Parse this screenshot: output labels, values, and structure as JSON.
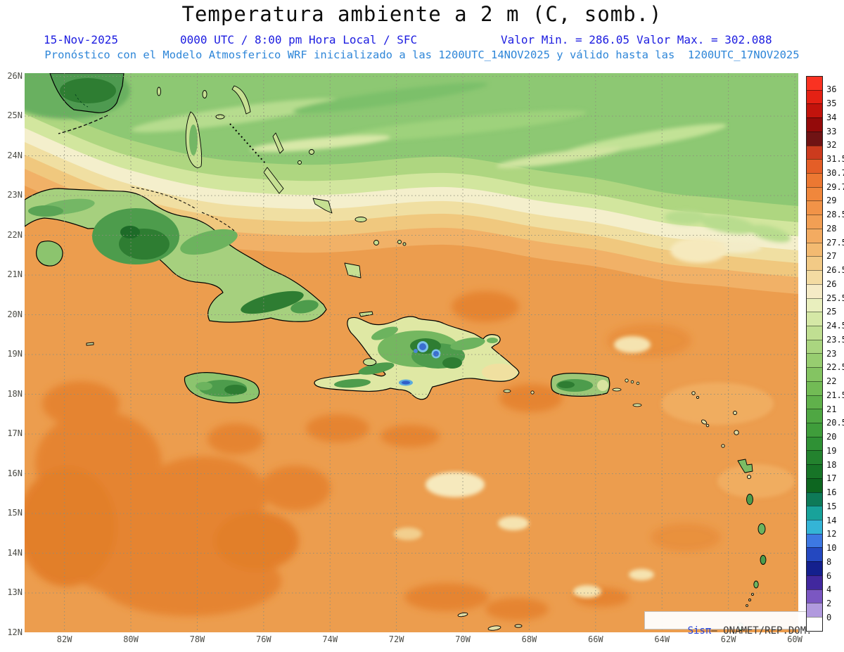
{
  "header": {
    "title": "Temperatura ambiente a 2 m (C, somb.)",
    "date": "15-Nov-2025",
    "time_info": "0000 UTC / 8:00 pm Hora Local / SFC",
    "min_label": "Valor Min. = 286.05",
    "max_label": "Valor Max. = 302.088",
    "model_info": "Pronóstico con el Modelo Atmosferico WRF inicializado a las 1200UTC_14NOV2025 y válido hasta las  1200UTC_17NOV2025"
  },
  "map": {
    "lat_labels": [
      "26N",
      "25N",
      "24N",
      "23N",
      "22N",
      "21N",
      "20N",
      "19N",
      "18N",
      "17N",
      "16N",
      "15N",
      "14N",
      "13N",
      "12N"
    ],
    "lon_labels": [
      "82W",
      "80W",
      "78W",
      "76W",
      "74W",
      "72W",
      "70W",
      "68W",
      "66W",
      "64W",
      "62W",
      "60W"
    ]
  },
  "colorbar": {
    "labels": [
      "36",
      "35",
      "34",
      "33",
      "32",
      "31.5",
      "30.7",
      "29.7",
      "29",
      "28.5",
      "28",
      "27.5",
      "27",
      "26.5",
      "26",
      "25.5",
      "25",
      "24.5",
      "23.5",
      "23",
      "22.5",
      "22",
      "21.5",
      "21",
      "20.5",
      "20",
      "19",
      "18",
      "17",
      "16",
      "15",
      "14",
      "12",
      "10",
      "8",
      "6",
      "4",
      "2",
      "0"
    ],
    "segment_colors": [
      "#fa3222",
      "#e42114",
      "#c2130c",
      "#940a0a",
      "#701314",
      "#cc3b1e",
      "#e45e27",
      "#ec7832",
      "#f0873c",
      "#f19348",
      "#f29f54",
      "#f3ab61",
      "#f3ba71",
      "#f2ca86",
      "#f3dba2",
      "#f5ebc6",
      "#e9efbe",
      "#d5e8a6",
      "#c0df92",
      "#aad580",
      "#97cd70",
      "#84c462",
      "#72bb55",
      "#60b14b",
      "#4fa743",
      "#3f9d3b",
      "#2f9135",
      "#23822e",
      "#177427",
      "#0d6620",
      "#0e7a58",
      "#18a29a",
      "#34b4d6",
      "#3d78e2",
      "#2448c0",
      "#14208e",
      "#41289e",
      "#7b57c2",
      "#b19ade",
      "#ffffff"
    ]
  },
  "watermark": {
    "prefix": "Sisπ",
    "text": "– ONAMET/REP.DOM."
  },
  "colors": {
    "header_blue": "#1c1ce0",
    "model_blue": "#2e86d8",
    "base_sea_orange": "#ec9d4e"
  }
}
